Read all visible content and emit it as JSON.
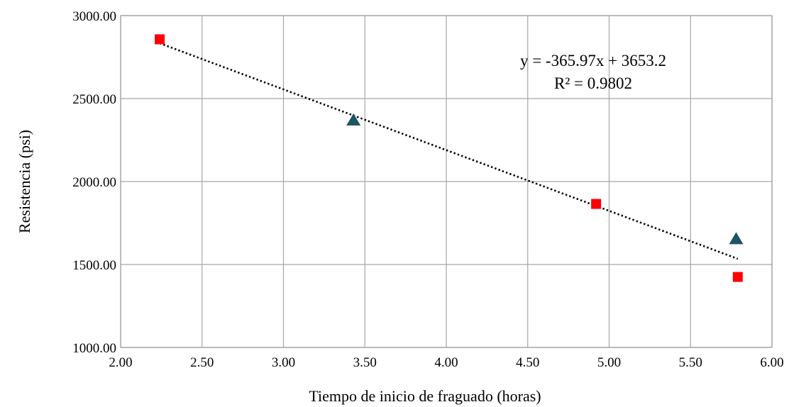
{
  "chart_data": {
    "type": "scatter",
    "xlabel": "Tiempo de inicio de fraguado (horas)",
    "ylabel": "Resistencia (psi)",
    "xlim": [
      2.0,
      6.0
    ],
    "ylim": [
      1000.0,
      3000.0
    ],
    "x_ticks": [
      "2.00",
      "2.50",
      "3.00",
      "3.50",
      "4.00",
      "4.50",
      "5.00",
      "5.50",
      "6.00"
    ],
    "y_ticks": [
      "1000.00",
      "1500.00",
      "2000.00",
      "2500.00",
      "3000.00"
    ],
    "grid": true,
    "series": [
      {
        "marker": "square",
        "color": "#ff0000",
        "points": [
          {
            "x": 2.24,
            "y": 2857
          },
          {
            "x": 4.92,
            "y": 1865
          },
          {
            "x": 5.79,
            "y": 1425
          }
        ]
      },
      {
        "marker": "triangle",
        "color": "#1f5563",
        "points": [
          {
            "x": 3.43,
            "y": 2365
          },
          {
            "x": 5.78,
            "y": 1650
          }
        ]
      }
    ],
    "trendline": {
      "style": "dotted",
      "slope": -365.97,
      "intercept": 3653.2,
      "x_range": [
        2.24,
        5.79
      ],
      "equation": "y = -365.97x + 3653.2",
      "r_squared": "R² = 0.9802"
    }
  }
}
